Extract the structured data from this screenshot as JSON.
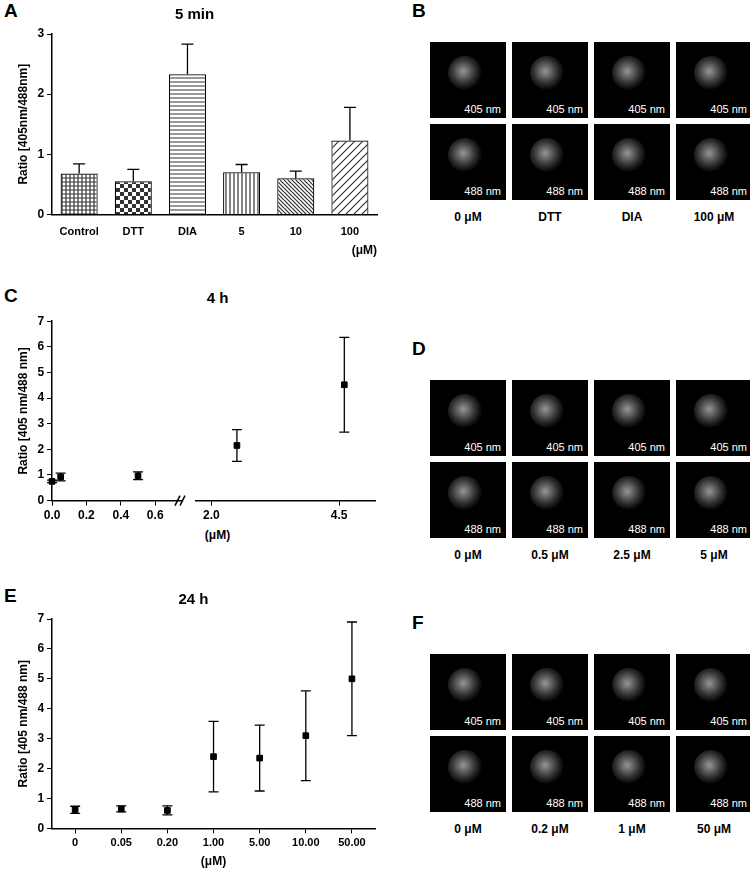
{
  "chart_data": [
    {
      "panel": "A",
      "type": "bar",
      "title": "5 min",
      "y_label": "Ratio [405nm/488nm]",
      "x_label": "(μM)",
      "categories": [
        "Control",
        "DTT",
        "DIA",
        "5",
        "10",
        "100"
      ],
      "values": [
        0.68,
        0.55,
        2.33,
        0.7,
        0.6,
        1.23
      ],
      "errors": [
        0.16,
        0.2,
        0.5,
        0.13,
        0.12,
        0.55
      ],
      "colors": [
        "#333333",
        "#333333",
        "#333333",
        "#333333",
        "#333333",
        "#333333"
      ],
      "ylim": [
        0,
        3
      ],
      "yticks": [
        0,
        1,
        2,
        3
      ],
      "grid": false
    },
    {
      "panel": "C",
      "type": "scatter",
      "title": "4 h",
      "y_label": "Ratio [405 nm/488 nm]",
      "x_label": "(μM)",
      "x": [
        0,
        0.05,
        0.5,
        2.5,
        4.6
      ],
      "values": [
        0.75,
        0.92,
        0.97,
        2.15,
        4.52
      ],
      "errors": [
        0.05,
        0.15,
        0.15,
        0.62,
        1.85
      ],
      "x_segments": [
        {
          "xlim": [
            0,
            0.75
          ],
          "xticks": [
            {
              "value": 0,
              "label": "0.0"
            },
            0.2,
            0.4,
            0.6
          ]
        },
        {
          "xlim": [
            1.7,
            5.2
          ],
          "xticks": [
            {
              "value": 2,
              "label": "2.0"
            },
            4.5
          ]
        }
      ],
      "ylim": [
        0,
        7
      ],
      "yticks": [
        0,
        1,
        2,
        3,
        4,
        5,
        6,
        7
      ],
      "marker": "square",
      "color": "#000000",
      "grid": false
    },
    {
      "panel": "E",
      "type": "scatter",
      "title": "24 h",
      "y_label": "Ratio [405 nm/488 nm]",
      "x_label": "(μM)",
      "categories": [
        "0",
        "0.05",
        "0.20",
        "1.00",
        "5.00",
        "10.00",
        "50.00"
      ],
      "values": [
        0.62,
        0.65,
        0.6,
        2.4,
        2.35,
        3.1,
        5.0
      ],
      "errors": [
        0.12,
        0.1,
        0.15,
        1.18,
        1.1,
        1.5,
        1.9
      ],
      "ylim": [
        0,
        7
      ],
      "yticks": [
        0,
        1,
        2,
        3,
        4,
        5,
        6,
        7
      ],
      "marker": "square",
      "color": "#000000",
      "grid": false
    }
  ],
  "image_panels": [
    {
      "panel": "B",
      "columns": [
        {
          "caption": "0 μM",
          "images": [
            "405 nm",
            "488 nm"
          ]
        },
        {
          "caption": "DTT",
          "images": [
            "405 nm",
            "488 nm"
          ]
        },
        {
          "caption": "DIA",
          "images": [
            "405 nm",
            "488 nm"
          ]
        },
        {
          "caption": "100 μM",
          "images": [
            "405 nm",
            "488 nm"
          ]
        }
      ]
    },
    {
      "panel": "D",
      "columns": [
        {
          "caption": "0 μM",
          "images": [
            "405 nm",
            "488 nm"
          ]
        },
        {
          "caption": "0.5 μM",
          "images": [
            "405 nm",
            "488 nm"
          ]
        },
        {
          "caption": "2.5 μM",
          "images": [
            "405 nm",
            "488 nm"
          ]
        },
        {
          "caption": "5 μM",
          "images": [
            "405 nm",
            "488 nm"
          ]
        }
      ]
    },
    {
      "panel": "F",
      "columns": [
        {
          "caption": "0 μM",
          "images": [
            "405 nm",
            "488 nm"
          ]
        },
        {
          "caption": "0.2 μM",
          "images": [
            "405 nm",
            "488 nm"
          ]
        },
        {
          "caption": "1 μM",
          "images": [
            "405 nm",
            "488 nm"
          ]
        },
        {
          "caption": "50 μM",
          "images": [
            "405 nm",
            "488 nm"
          ]
        }
      ]
    }
  ]
}
